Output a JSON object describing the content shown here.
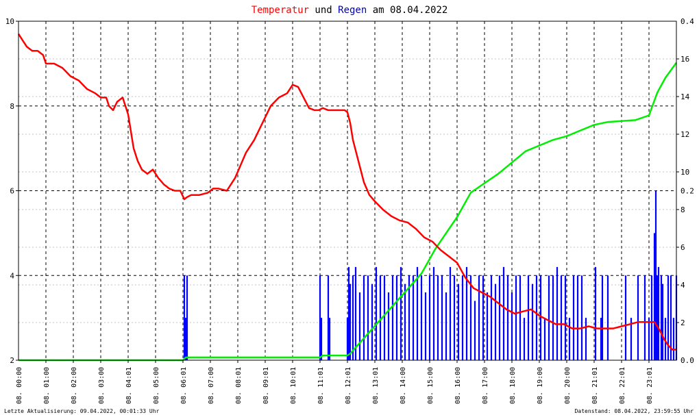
{
  "chart_data": {
    "type": "line",
    "title": {
      "part1": "Temperatur",
      "part2": " und ",
      "part3": "Regen",
      "part4": " am 08.04.2022"
    },
    "colors": {
      "temperature": "#ff0000",
      "rain_cumulative": "#00ee00",
      "rain_rate": "#0000ff",
      "title_temperature": "#ff0000",
      "title_rain": "#0000aa",
      "grid": "#000000"
    },
    "grid": true,
    "xlim": [
      0,
      24
    ],
    "x_ticks": [
      "08. 00:00",
      "08. 01:00",
      "08. 02:00",
      "08. 03:00",
      "08. 04:01",
      "08. 05:00",
      "08. 06:01",
      "08. 07:00",
      "08. 08:01",
      "08. 09:01",
      "08. 10:01",
      "08. 11:01",
      "08. 12:01",
      "08. 13:01",
      "08. 14:00",
      "08. 15:00",
      "08. 16:00",
      "08. 17:00",
      "08. 18:00",
      "08. 19:00",
      "08. 20:00",
      "08. 21:01",
      "08. 22:01",
      "08. 23:01"
    ],
    "y_left": {
      "ylim": [
        2,
        10
      ],
      "ticks": [
        "10",
        "8",
        "6",
        "4",
        "2"
      ]
    },
    "y_right_outer": {
      "ylim": [
        0,
        0.4
      ],
      "ticks": [
        "0.4",
        "0.2",
        "0.0"
      ]
    },
    "y_right_inner": {
      "ylim": [
        0,
        18
      ],
      "ticks": [
        "16",
        "14",
        "12",
        "10",
        "8",
        "6",
        "4",
        "2",
        "0"
      ]
    },
    "series": [
      {
        "key": "temperature",
        "axis": "left",
        "x": [
          0,
          0.1,
          0.2,
          0.3,
          0.5,
          0.7,
          0.9,
          1.0,
          1.3,
          1.6,
          1.9,
          2.2,
          2.5,
          2.8,
          3.0,
          3.2,
          3.3,
          3.45,
          3.6,
          3.8,
          4.0,
          4.1,
          4.2,
          4.35,
          4.5,
          4.7,
          4.9,
          5.1,
          5.3,
          5.5,
          5.7,
          5.9,
          6.05,
          6.15,
          6.3,
          6.6,
          6.9,
          7.1,
          7.3,
          7.6,
          7.9,
          8.1,
          8.3,
          8.6,
          8.9,
          9.2,
          9.5,
          9.8,
          10.0,
          10.2,
          10.4,
          10.6,
          10.8,
          10.95,
          11.1,
          11.3,
          11.6,
          11.9,
          12.0,
          12.1,
          12.2,
          12.4,
          12.6,
          12.8,
          13.0,
          13.3,
          13.6,
          13.9,
          14.2,
          14.5,
          14.8,
          15.1,
          15.4,
          15.7,
          16.0,
          16.3,
          16.6,
          16.9,
          17.2,
          17.5,
          17.8,
          18.1,
          18.4,
          18.7,
          19.0,
          19.3,
          19.6,
          19.9,
          20.2,
          20.5,
          20.8,
          21.1,
          21.4,
          21.7,
          22.0,
          22.3,
          22.6,
          22.9,
          23.2,
          23.4,
          23.55,
          23.7,
          23.85,
          24.0
        ],
        "y": [
          9.7,
          9.6,
          9.5,
          9.4,
          9.3,
          9.3,
          9.2,
          9.0,
          9.0,
          8.9,
          8.7,
          8.6,
          8.4,
          8.3,
          8.2,
          8.2,
          8.0,
          7.9,
          8.1,
          8.2,
          7.8,
          7.4,
          7.0,
          6.7,
          6.5,
          6.4,
          6.5,
          6.3,
          6.15,
          6.05,
          6.0,
          6.0,
          5.8,
          5.85,
          5.9,
          5.9,
          5.95,
          6.05,
          6.05,
          6.0,
          6.3,
          6.6,
          6.9,
          7.2,
          7.6,
          8.0,
          8.2,
          8.3,
          8.5,
          8.45,
          8.2,
          7.95,
          7.9,
          7.9,
          7.95,
          7.9,
          7.9,
          7.9,
          7.85,
          7.6,
          7.2,
          6.7,
          6.2,
          5.9,
          5.75,
          5.55,
          5.4,
          5.3,
          5.25,
          5.1,
          4.9,
          4.8,
          4.6,
          4.45,
          4.3,
          3.95,
          3.7,
          3.6,
          3.5,
          3.35,
          3.2,
          3.1,
          3.15,
          3.2,
          3.05,
          2.95,
          2.85,
          2.85,
          2.75,
          2.75,
          2.8,
          2.75,
          2.75,
          2.75,
          2.8,
          2.85,
          2.9,
          2.9,
          2.9,
          2.7,
          2.5,
          2.35,
          2.25,
          2.25
        ]
      },
      {
        "key": "rain_cumulative",
        "axis": "right_inner",
        "x": [
          0,
          6.0,
          6.1,
          11.0,
          11.1,
          12.0,
          12.1,
          14.7,
          15.2,
          16.0,
          16.5,
          17.0,
          17.5,
          18.0,
          18.5,
          19.0,
          19.5,
          20.0,
          20.5,
          21.0,
          21.5,
          22.0,
          22.5,
          23.0,
          23.3,
          23.6,
          24.0
        ],
        "y": [
          0,
          0,
          0.15,
          0.15,
          0.25,
          0.25,
          0.35,
          4.6,
          5.9,
          7.6,
          8.9,
          9.4,
          9.9,
          10.5,
          11.1,
          11.4,
          11.7,
          11.9,
          12.2,
          12.5,
          12.65,
          12.7,
          12.75,
          13.0,
          14.2,
          15.0,
          15.8
        ]
      },
      {
        "key": "rain_rate",
        "axis": "right_outer",
        "x": [
          6.05,
          6.1,
          6.15,
          11.0,
          11.05,
          11.3,
          11.35,
          12.0,
          12.05,
          12.1,
          12.2,
          12.3,
          12.45,
          12.6,
          12.75,
          12.9,
          13.05,
          13.2,
          13.35,
          13.5,
          13.65,
          13.8,
          13.95,
          14.1,
          14.25,
          14.4,
          14.55,
          14.7,
          14.85,
          15.0,
          15.15,
          15.3,
          15.45,
          15.6,
          15.75,
          15.9,
          16.05,
          16.2,
          16.35,
          16.5,
          16.65,
          16.8,
          16.95,
          17.1,
          17.25,
          17.4,
          17.55,
          17.7,
          17.85,
          18.0,
          18.15,
          18.3,
          18.45,
          18.6,
          18.75,
          18.9,
          19.05,
          19.2,
          19.35,
          19.5,
          19.65,
          19.8,
          19.95,
          20.1,
          20.25,
          20.4,
          20.55,
          20.7,
          21.05,
          21.25,
          21.3,
          21.5,
          22.15,
          22.35,
          22.6,
          22.85,
          23.0,
          23.1,
          23.2,
          23.25,
          23.3,
          23.35,
          23.45,
          23.5,
          23.6,
          23.7,
          23.8,
          23.9,
          24.0
        ],
        "y": [
          0.1,
          0.05,
          0.1,
          0.1,
          0.05,
          0.1,
          0.05,
          0.05,
          0.11,
          0.09,
          0.1,
          0.11,
          0.08,
          0.1,
          0.1,
          0.09,
          0.11,
          0.1,
          0.1,
          0.08,
          0.1,
          0.1,
          0.11,
          0.09,
          0.1,
          0.1,
          0.11,
          0.1,
          0.08,
          0.1,
          0.11,
          0.1,
          0.1,
          0.08,
          0.11,
          0.1,
          0.09,
          0.1,
          0.11,
          0.1,
          0.07,
          0.1,
          0.1,
          0.08,
          0.1,
          0.09,
          0.1,
          0.11,
          0.1,
          0.08,
          0.1,
          0.1,
          0.05,
          0.1,
          0.09,
          0.1,
          0.1,
          0.05,
          0.1,
          0.1,
          0.11,
          0.1,
          0.1,
          0.05,
          0.1,
          0.1,
          0.1,
          0.05,
          0.11,
          0.05,
          0.1,
          0.1,
          0.1,
          0.05,
          0.1,
          0.1,
          0.05,
          0.1,
          0.15,
          0.2,
          0.1,
          0.11,
          0.1,
          0.09,
          0.05,
          0.1,
          0.1,
          0.05,
          0.1
        ]
      }
    ]
  },
  "footer": {
    "left": "Letzte Aktualisierung: 09.04.2022, 00:01:33 Uhr",
    "right": "Datenstand: 08.04.2022, 23:59:55 Uhr"
  }
}
